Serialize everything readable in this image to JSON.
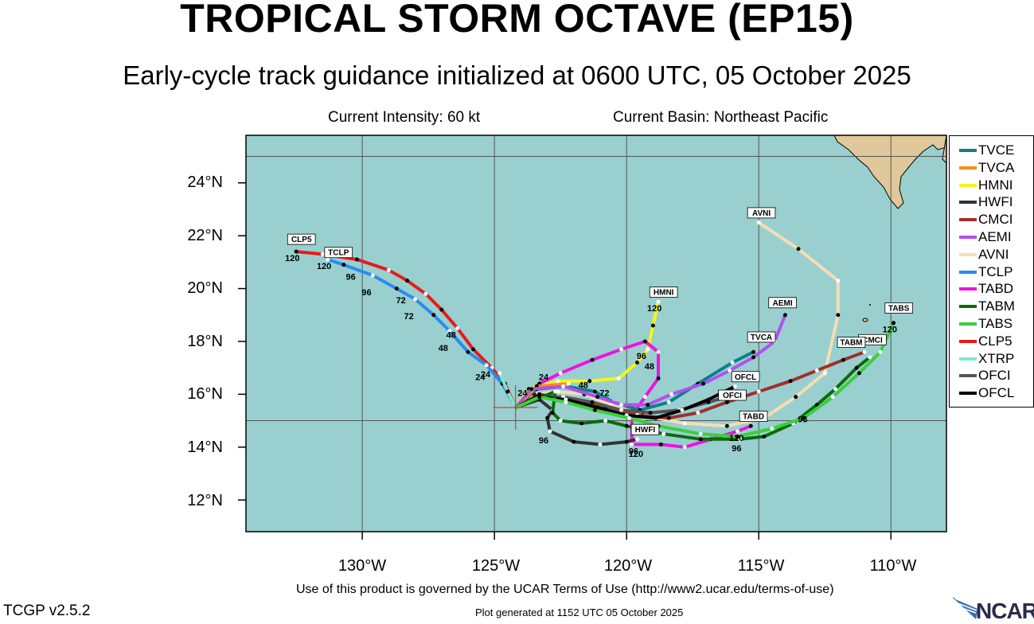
{
  "title": "TROPICAL STORM OCTAVE (EP15)",
  "subtitle": "Early-cycle track guidance initialized at 0600 UTC, 05 October 2025",
  "current_intensity": "Current Intensity: 60 kt",
  "current_basin": "Current Basin: Northeast Pacific",
  "lat_labels": [
    "24°N",
    "22°N",
    "20°N",
    "18°N",
    "16°N",
    "14°N",
    "12°N"
  ],
  "lon_labels": [
    "130°W",
    "125°W",
    "120°W",
    "115°W",
    "110°W"
  ],
  "terms": "Use of this product is governed by the UCAR Terms of Use (http://www2.ucar.edu/terms-of-use)",
  "version": "TCGP v2.5.2",
  "generated": "Plot generated at 1152 UTC   05 October 2025",
  "logo_text": "NCAR",
  "map_bounds": {
    "lon": [
      -134.4,
      -107.9
    ],
    "lat": [
      10.8,
      25.8
    ]
  },
  "colors": {
    "ocean": "#99cfcf",
    "land": "#e0c89a",
    "grid": "#555555"
  },
  "legend": [
    {
      "name": "TVCE",
      "color": "#0e7f87"
    },
    {
      "name": "TVCA",
      "color": "#ff8c1a"
    },
    {
      "name": "HMNI",
      "color": "#f5f517"
    },
    {
      "name": "HWFI",
      "color": "#333333"
    },
    {
      "name": "CMCI",
      "color": "#a0302a"
    },
    {
      "name": "AEMI",
      "color": "#b24ff0"
    },
    {
      "name": "AVNI",
      "color": "#f5deb3"
    },
    {
      "name": "TCLP",
      "color": "#2a8cee"
    },
    {
      "name": "TABD",
      "color": "#f012e0"
    },
    {
      "name": "TABM",
      "color": "#0a6b0a"
    },
    {
      "name": "TABS",
      "color": "#3ccf3c"
    },
    {
      "name": "CLP5",
      "color": "#e81a1a"
    },
    {
      "name": "XTRP",
      "color": "#7fe8c8"
    },
    {
      "name": "OFCI",
      "color": "#555555"
    },
    {
      "name": "OFCL",
      "color": "#000000"
    }
  ],
  "storm_position": {
    "lon": -124.2,
    "lat": 15.5
  },
  "tracks": [
    {
      "name": "CLP5",
      "color": "#e81a1a",
      "label": "CLP5",
      "points": [
        [
          -124.2,
          15.5
        ],
        [
          -124.6,
          16.4
        ],
        [
          -125.1,
          17.0
        ],
        [
          -125.8,
          17.7
        ],
        [
          -126.4,
          18.5
        ],
        [
          -127.0,
          19.2
        ],
        [
          -127.6,
          19.8
        ],
        [
          -128.3,
          20.3
        ],
        [
          -129.0,
          20.7
        ],
        [
          -130.2,
          21.1
        ],
        [
          -131.5,
          21.3
        ],
        [
          -132.5,
          21.4
        ]
      ],
      "ticks": [
        {
          "lon": -125.1,
          "lat": 17.0,
          "t": "24"
        },
        {
          "lon": -126.4,
          "lat": 18.5,
          "t": "48"
        },
        {
          "lon": -128.3,
          "lat": 19.8,
          "t": "72"
        },
        {
          "lon": -130.2,
          "lat": 20.7,
          "t": "96"
        },
        {
          "lon": -132.5,
          "lat": 21.4,
          "t": "120"
        }
      ],
      "tag": {
        "lon": -132.3,
        "lat": 21.7
      }
    },
    {
      "name": "TCLP",
      "color": "#2a8cee",
      "label": "TCLP",
      "points": [
        [
          -124.2,
          15.5
        ],
        [
          -124.7,
          16.4
        ],
        [
          -125.3,
          17.1
        ],
        [
          -126.0,
          17.6
        ],
        [
          -126.7,
          18.4
        ],
        [
          -127.3,
          19.0
        ],
        [
          -128.0,
          19.6
        ],
        [
          -128.7,
          20.0
        ],
        [
          -129.6,
          20.5
        ],
        [
          -130.7,
          20.9
        ],
        [
          -131.3,
          21.1
        ]
      ],
      "ticks": [
        {
          "lon": -125.3,
          "lat": 16.9,
          "t": "24"
        },
        {
          "lon": -126.7,
          "lat": 18.0,
          "t": "48"
        },
        {
          "lon": -128.0,
          "lat": 19.2,
          "t": "72"
        },
        {
          "lon": -129.6,
          "lat": 20.1,
          "t": "96"
        },
        {
          "lon": -131.3,
          "lat": 21.1,
          "t": "120"
        }
      ],
      "tag": {
        "lon": -130.9,
        "lat": 21.2
      }
    },
    {
      "name": "XTRP",
      "color": "#7fe8c8",
      "label": "",
      "points": [
        [
          -124.2,
          15.5
        ],
        [
          -124.5,
          16.1
        ],
        [
          -124.8,
          16.8
        ]
      ],
      "ticks": [],
      "tag": null
    },
    {
      "name": "AVNI",
      "color": "#f5deb3",
      "label": "AVNI",
      "points": [
        [
          -124.2,
          15.5
        ],
        [
          -123.5,
          16.0
        ],
        [
          -122.6,
          16.1
        ],
        [
          -121.6,
          16.0
        ],
        [
          -120.6,
          15.6
        ],
        [
          -119.4,
          15.2
        ],
        [
          -117.8,
          14.9
        ],
        [
          -116.2,
          14.8
        ],
        [
          -114.8,
          15.1
        ],
        [
          -113.6,
          15.9
        ],
        [
          -112.5,
          16.8
        ],
        [
          -112.0,
          19.0
        ],
        [
          -112.0,
          20.3
        ],
        [
          -113.5,
          21.5
        ],
        [
          -115.0,
          22.5
        ]
      ],
      "ticks": [],
      "tag": {
        "lon": -114.9,
        "lat": 22.7
      }
    },
    {
      "name": "HMNI",
      "color": "#f5f517",
      "label": "HMNI",
      "points": [
        [
          -124.2,
          15.5
        ],
        [
          -123.7,
          16.2
        ],
        [
          -122.6,
          16.5
        ],
        [
          -121.4,
          16.5
        ],
        [
          -120.3,
          16.6
        ],
        [
          -119.6,
          17.2
        ],
        [
          -119.2,
          17.7
        ],
        [
          -119.0,
          18.6
        ],
        [
          -118.8,
          19.5
        ]
      ],
      "ticks": [
        {
          "lon": -123.7,
          "lat": 16.3,
          "t": "24"
        },
        {
          "lon": -121.4,
          "lat": 16.6,
          "t": "48"
        },
        {
          "lon": -120.6,
          "lat": 16.3,
          "t": "72"
        },
        {
          "lon": -119.2,
          "lat": 17.7,
          "t": "96"
        },
        {
          "lon": -118.8,
          "lat": 19.5,
          "t": "120"
        }
      ],
      "tag": {
        "lon": -118.6,
        "lat": 19.7
      }
    },
    {
      "name": "TABD",
      "color": "#f012e0",
      "label": "TABD",
      "points": [
        [
          -124.2,
          15.5
        ],
        [
          -123.3,
          16.4
        ],
        [
          -122.5,
          16.8
        ],
        [
          -121.3,
          17.3
        ],
        [
          -120.2,
          17.7
        ],
        [
          -119.3,
          18.0
        ],
        [
          -118.8,
          17.6
        ],
        [
          -118.8,
          16.6
        ],
        [
          -119.3,
          15.9
        ],
        [
          -119.8,
          15.2
        ],
        [
          -119.8,
          14.1
        ],
        [
          -118.7,
          14.1
        ],
        [
          -117.8,
          14.0
        ],
        [
          -116.8,
          14.3
        ],
        [
          -115.8,
          14.6
        ],
        [
          -115.3,
          14.8
        ]
      ],
      "ticks": [
        {
          "lon": -122.9,
          "lat": 16.9,
          "t": "24"
        },
        {
          "lon": -118.9,
          "lat": 17.3,
          "t": "48"
        },
        {
          "lon": -119.4,
          "lat": 15.0,
          "t": "72"
        },
        {
          "lon": -119.5,
          "lat": 14.1,
          "t": "96"
        },
        {
          "lon": -115.7,
          "lat": 14.6,
          "t": "120"
        }
      ],
      "tag": {
        "lon": -115.2,
        "lat": 15.0
      }
    },
    {
      "name": "TVCE",
      "color": "#0e7f87",
      "label": "TVCE",
      "points": [
        [
          -124.2,
          15.5
        ],
        [
          -123.4,
          16.2
        ],
        [
          -122.3,
          16.3
        ],
        [
          -121.2,
          16.1
        ],
        [
          -120.5,
          15.7
        ],
        [
          -119.5,
          15.4
        ],
        [
          -118.4,
          15.7
        ],
        [
          -117.3,
          16.4
        ],
        [
          -116.0,
          17.2
        ],
        [
          -115.2,
          17.6
        ]
      ],
      "ticks": [],
      "tag": null
    },
    {
      "name": "TVCA",
      "color": "#ff8c1a",
      "label": "TVCA",
      "points": [
        [
          -124.2,
          15.5
        ],
        [
          -123.4,
          16.3
        ],
        [
          -122.2,
          16.4
        ]
      ],
      "ticks": [],
      "tag": {
        "lon": -114.9,
        "lat": 18.0
      }
    },
    {
      "name": "AEMI",
      "color": "#b24ff0",
      "label": "AEMI",
      "points": [
        [
          -124.2,
          15.5
        ],
        [
          -123.6,
          16.2
        ],
        [
          -122.4,
          16.3
        ],
        [
          -121.1,
          15.9
        ],
        [
          -120.2,
          15.6
        ],
        [
          -119.2,
          15.6
        ],
        [
          -118.3,
          16.0
        ],
        [
          -117.1,
          16.4
        ],
        [
          -116.1,
          16.9
        ],
        [
          -115.2,
          17.4
        ],
        [
          -114.4,
          18.0
        ],
        [
          -114.0,
          19.0
        ]
      ],
      "ticks": [],
      "tag": {
        "lon": -114.1,
        "lat": 19.3
      }
    },
    {
      "name": "CMCI",
      "color": "#a0302a",
      "label": "CMCI",
      "points": [
        [
          -124.2,
          15.5
        ],
        [
          -123.3,
          16.0
        ],
        [
          -122.1,
          15.8
        ],
        [
          -120.8,
          15.5
        ],
        [
          -119.6,
          15.2
        ],
        [
          -118.4,
          15.1
        ],
        [
          -117.3,
          15.3
        ],
        [
          -116.2,
          15.7
        ],
        [
          -115.0,
          16.1
        ],
        [
          -113.8,
          16.5
        ],
        [
          -112.8,
          16.9
        ],
        [
          -111.8,
          17.3
        ],
        [
          -111.0,
          17.6
        ]
      ],
      "ticks": [],
      "tag": {
        "lon": -110.7,
        "lat": 17.9
      }
    },
    {
      "name": "OFCI",
      "color": "#555555",
      "label": "OFCI",
      "points": [
        [
          -124.2,
          15.5
        ],
        [
          -123.4,
          15.9
        ],
        [
          -122.4,
          15.9
        ],
        [
          -121.3,
          15.7
        ],
        [
          -120.2,
          15.4
        ],
        [
          -119.1,
          15.3
        ],
        [
          -118.0,
          15.4
        ],
        [
          -116.9,
          15.7
        ],
        [
          -116.2,
          15.9
        ]
      ],
      "ticks": [],
      "tag": {
        "lon": -116.0,
        "lat": 15.8
      }
    },
    {
      "name": "OFCL",
      "color": "#000000",
      "label": "OFCL",
      "points": [
        [
          -124.2,
          15.5
        ],
        [
          -123.4,
          15.9
        ],
        [
          -122.3,
          15.8
        ],
        [
          -121.1,
          15.5
        ],
        [
          -120.0,
          15.2
        ],
        [
          -118.9,
          15.1
        ],
        [
          -117.9,
          15.4
        ],
        [
          -116.9,
          15.8
        ],
        [
          -115.9,
          16.3
        ]
      ],
      "ticks": [],
      "tag": {
        "lon": -115.5,
        "lat": 16.5
      }
    },
    {
      "name": "HWFI",
      "color": "#333333",
      "label": "HWFI",
      "points": [
        [
          -124.2,
          15.5
        ],
        [
          -123.3,
          15.8
        ],
        [
          -122.8,
          15.4
        ],
        [
          -123.0,
          15.1
        ],
        [
          -122.9,
          14.6
        ],
        [
          -122.0,
          14.2
        ],
        [
          -121.0,
          14.1
        ],
        [
          -120.0,
          14.2
        ],
        [
          -119.6,
          14.3
        ]
      ],
      "ticks": [
        {
          "lon": -122.9,
          "lat": 14.5,
          "t": "96"
        },
        {
          "lon": -119.5,
          "lat": 14.0,
          "t": "120"
        }
      ],
      "tag": {
        "lon": -119.3,
        "lat": 14.5
      }
    },
    {
      "name": "TABM",
      "color": "#0a6b0a",
      "label": "TABM",
      "points": [
        [
          -124.2,
          15.5
        ],
        [
          -123.2,
          15.9
        ],
        [
          -122.7,
          16.1
        ],
        [
          -122.8,
          15.3
        ],
        [
          -122.5,
          15.0
        ],
        [
          -121.7,
          14.9
        ],
        [
          -120.8,
          15.0
        ],
        [
          -120.0,
          14.8
        ],
        [
          -118.6,
          14.5
        ],
        [
          -117.2,
          14.3
        ],
        [
          -115.7,
          14.3
        ],
        [
          -114.8,
          14.4
        ],
        [
          -113.7,
          14.9
        ],
        [
          -112.8,
          15.6
        ],
        [
          -112.1,
          16.2
        ],
        [
          -111.3,
          17.0
        ],
        [
          -110.8,
          17.4
        ]
      ],
      "ticks": [
        {
          "lon": -113.1,
          "lat": 15.3,
          "t": "96"
        }
      ],
      "tag": {
        "lon": -111.5,
        "lat": 17.8
      }
    },
    {
      "name": "TABS",
      "color": "#3ccf3c",
      "label": "TABS",
      "points": [
        [
          -124.2,
          15.5
        ],
        [
          -123.3,
          15.9
        ],
        [
          -122.3,
          15.7
        ],
        [
          -121.2,
          15.4
        ],
        [
          -119.9,
          15.1
        ],
        [
          -118.8,
          14.8
        ],
        [
          -117.2,
          14.5
        ],
        [
          -115.8,
          14.4
        ],
        [
          -114.5,
          14.7
        ],
        [
          -113.3,
          15.1
        ],
        [
          -112.2,
          15.9
        ],
        [
          -111.2,
          16.8
        ],
        [
          -110.4,
          17.6
        ],
        [
          -109.9,
          18.7
        ]
      ],
      "ticks": [
        {
          "lon": -115.6,
          "lat": 14.2,
          "t": "96"
        },
        {
          "lon": -109.9,
          "lat": 18.7,
          "t": "120"
        }
      ],
      "tag": {
        "lon": -109.7,
        "lat": 19.1
      }
    }
  ]
}
